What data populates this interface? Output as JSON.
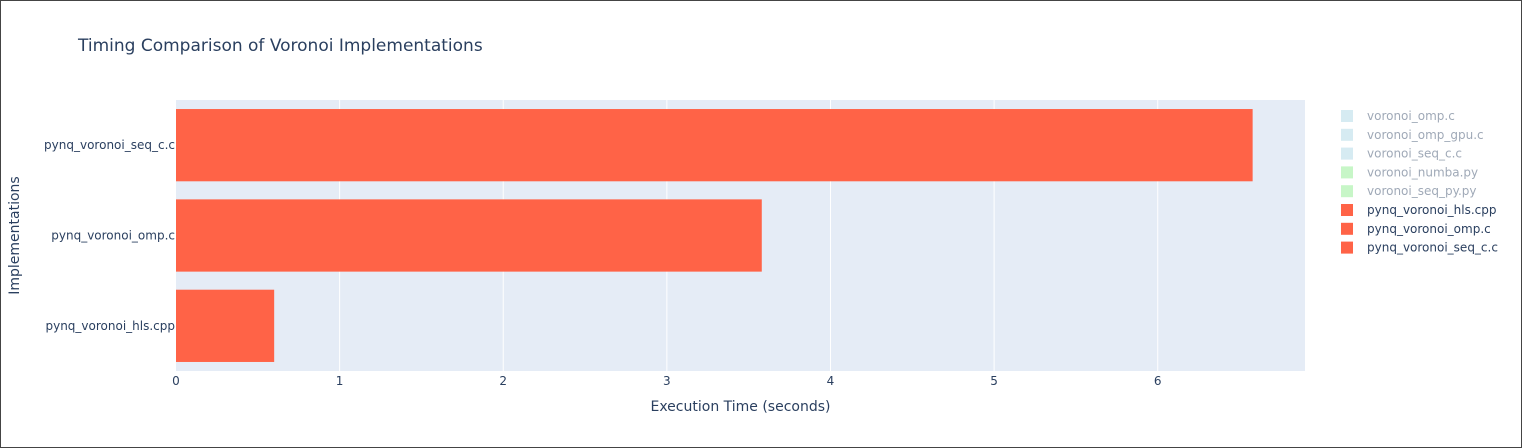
{
  "chart_data": {
    "type": "bar",
    "orientation": "horizontal",
    "title": "Timing Comparison of Voronoi Implementations",
    "xlabel": "Execution Time (seconds)",
    "ylabel": "Implementations",
    "categories": [
      "pynq_voronoi_hls.cpp",
      "pynq_voronoi_omp.c",
      "pynq_voronoi_seq_c.c"
    ],
    "values": [
      0.6,
      3.58,
      6.58
    ],
    "bar_color": "#ff6347",
    "xlim": [
      0,
      6.9
    ],
    "xticks": [
      0,
      1,
      2,
      3,
      4,
      5,
      6
    ],
    "xtick_labels": [
      "0",
      "1",
      "2",
      "3",
      "4",
      "5",
      "6"
    ],
    "grid": true,
    "plot_background": "#e5ecf6",
    "legend_position": "right",
    "legend": [
      {
        "name": "voronoi_omp.c",
        "color": "#add8e6",
        "active": false
      },
      {
        "name": "voronoi_omp_gpu.c",
        "color": "#add8e6",
        "active": false
      },
      {
        "name": "voronoi_seq_c.c",
        "color": "#add8e6",
        "active": false
      },
      {
        "name": "voronoi_numba.py",
        "color": "#90ee90",
        "active": false
      },
      {
        "name": "voronoi_seq_py.py",
        "color": "#90ee90",
        "active": false
      },
      {
        "name": "pynq_voronoi_hls.cpp",
        "color": "#ff6347",
        "active": true
      },
      {
        "name": "pynq_voronoi_omp.c",
        "color": "#ff6347",
        "active": true
      },
      {
        "name": "pynq_voronoi_seq_c.c",
        "color": "#ff6347",
        "active": true
      }
    ]
  }
}
